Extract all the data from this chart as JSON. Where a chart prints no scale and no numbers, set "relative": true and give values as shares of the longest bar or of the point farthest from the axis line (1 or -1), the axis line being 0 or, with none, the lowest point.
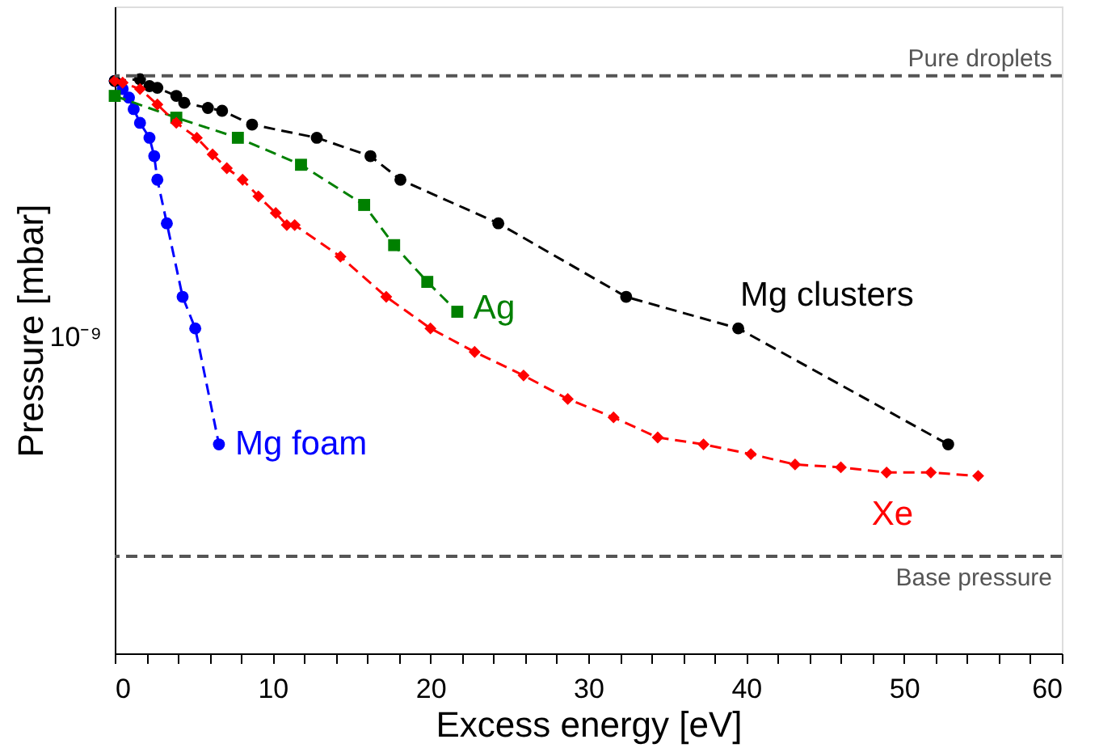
{
  "chart_data": {
    "type": "line",
    "xlabel": "Excess energy [eV]",
    "ylabel": "Pressure [mbar]",
    "relative": true,
    "grid": false,
    "legend": false,
    "line_style": "dashed",
    "xlim": [
      0,
      60
    ],
    "xticks": [
      0,
      {
        "value": 2,
        "label": null
      },
      {
        "value": 4,
        "label": null
      },
      {
        "value": 6,
        "label": null
      },
      {
        "value": 8,
        "label": null
      },
      10,
      {
        "value": 12,
        "label": null
      },
      {
        "value": 14,
        "label": null
      },
      {
        "value": 16,
        "label": null
      },
      {
        "value": 18,
        "label": null
      },
      20,
      {
        "value": 22,
        "label": null
      },
      {
        "value": 24,
        "label": null
      },
      {
        "value": 26,
        "label": null
      },
      {
        "value": 28,
        "label": null
      },
      30,
      {
        "value": 32,
        "label": null
      },
      {
        "value": 34,
        "label": null
      },
      {
        "value": 36,
        "label": null
      },
      {
        "value": 38,
        "label": null
      },
      40,
      {
        "value": 42,
        "label": null
      },
      {
        "value": 44,
        "label": null
      },
      {
        "value": 46,
        "label": null
      },
      {
        "value": 48,
        "label": null
      },
      50,
      {
        "value": 52,
        "label": null
      },
      {
        "value": 54,
        "label": null
      },
      {
        "value": 56,
        "label": null
      },
      {
        "value": 58,
        "label": null
      },
      60
    ],
    "annotations": [
      "10⁻⁹"
    ],
    "ref_lines": [
      {
        "axis": "y",
        "value": 1.006,
        "label": "Pure droplets",
        "color": "#555555",
        "line_style": "dashed"
      },
      {
        "axis": "y",
        "value": 0.169,
        "label": "Base pressure",
        "color": "#555555",
        "line_style": "dashed"
      }
    ],
    "series": [
      {
        "name": "Mg foam",
        "color": "#0000ff",
        "marker": "circle",
        "x": [
          0,
          0.5,
          0.9,
          1.2,
          1.6,
          2.2,
          2.5,
          2.7,
          3.3,
          4.3,
          5.1,
          6.6
        ],
        "values": [
          0.997,
          0.983,
          0.968,
          0.948,
          0.924,
          0.898,
          0.866,
          0.825,
          0.749,
          0.621,
          0.566,
          0.364
        ]
      },
      {
        "name": "Mg clusters",
        "color": "#000000",
        "marker": "circle",
        "x": [
          0,
          1.6,
          2.2,
          2.7,
          3.9,
          4.4,
          5.9,
          6.8,
          8.7,
          12.8,
          16.2,
          18.1,
          24.3,
          32.4,
          39.5,
          52.8
        ],
        "values": [
          0.997,
          1,
          0.988,
          0.985,
          0.971,
          0.959,
          0.95,
          0.945,
          0.921,
          0.898,
          0.866,
          0.825,
          0.749,
          0.621,
          0.566,
          0.364
        ]
      },
      {
        "name": "Ag",
        "color": "#008000",
        "marker": "square",
        "x": [
          0,
          3.9,
          7.8,
          11.8,
          15.8,
          17.7,
          19.8,
          21.7
        ],
        "values": [
          0.971,
          0.933,
          0.898,
          0.851,
          0.781,
          0.711,
          0.647,
          0.595
        ]
      },
      {
        "name": "Xe",
        "color": "#ff0000",
        "marker": "diamond",
        "x": [
          0,
          0.5,
          1.6,
          2.7,
          3.9,
          5.2,
          6.2,
          7.1,
          8.1,
          9.1,
          10.2,
          10.9,
          11.4,
          14.3,
          17.2,
          20.0,
          22.8,
          25.9,
          28.7,
          31.6,
          34.4,
          37.3,
          40.3,
          43.1,
          46.0,
          48.9,
          51.7,
          54.7
        ],
        "values": [
          0.997,
          0.994,
          0.983,
          0.956,
          0.924,
          0.898,
          0.869,
          0.845,
          0.825,
          0.796,
          0.767,
          0.746,
          0.746,
          0.691,
          0.621,
          0.566,
          0.525,
          0.484,
          0.443,
          0.411,
          0.376,
          0.364,
          0.347,
          0.329,
          0.324,
          0.315,
          0.315,
          0.309
        ]
      }
    ]
  }
}
